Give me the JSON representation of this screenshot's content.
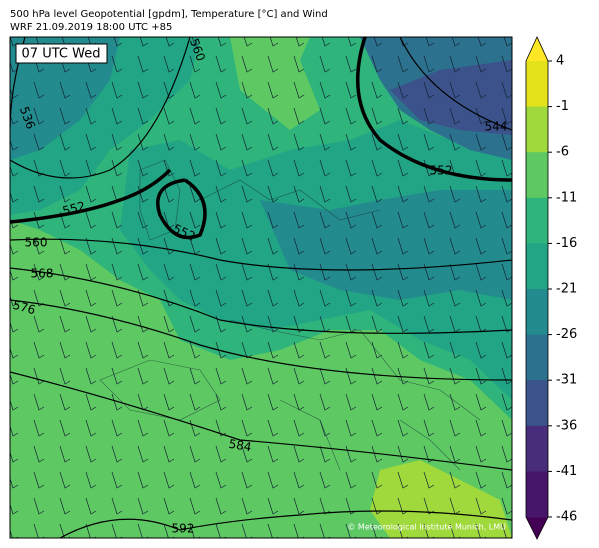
{
  "header": {
    "line1": "500 hPa level Geopotential [gpdm], Temperature [°C] and Wind",
    "line2": "WRF 21.09.2019 18:00 UTC +85"
  },
  "map": {
    "time_label": "07 UTC Wed",
    "contour_labels": [
      "560",
      "536",
      "552",
      "552",
      "544",
      "552",
      "560",
      "568",
      "576",
      "584",
      "592"
    ],
    "credit": "© Meteorological Institute Munich, LMU"
  },
  "colorbar": {
    "ticks": [
      4,
      -1,
      -6,
      -11,
      -16,
      -21,
      -26,
      -31,
      -36,
      -41,
      -46
    ],
    "colors": [
      "#e3e21b",
      "#a0d93b",
      "#5ec962",
      "#2fb47c",
      "#21a585",
      "#238a8d",
      "#2c728e",
      "#3b528b",
      "#472d7b",
      "#46166c"
    ],
    "extend_colors": [
      "#fde725",
      "#440154"
    ]
  }
}
